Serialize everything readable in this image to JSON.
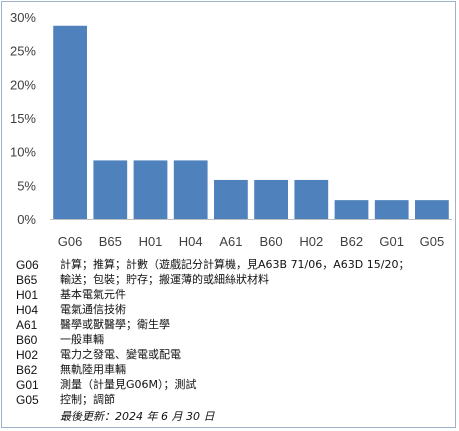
{
  "chart_data": {
    "type": "bar",
    "title": "",
    "xlabel": "",
    "ylabel": "",
    "ylim": [
      0,
      30
    ],
    "yticks": [
      "0%",
      "5%",
      "10%",
      "15%",
      "20%",
      "25%",
      "30%"
    ],
    "grid": false,
    "bar_color": "#4f81bd",
    "categories": [
      "G06",
      "B65",
      "H01",
      "H04",
      "A61",
      "B60",
      "H02",
      "B62",
      "G01",
      "G05"
    ],
    "values": [
      28.7,
      8.7,
      8.7,
      8.7,
      5.8,
      5.8,
      5.8,
      2.8,
      2.8,
      2.8
    ]
  },
  "legend": [
    {
      "code": "G06",
      "desc": "計算；推算；計數（遊戲記分計算機，見A63B 71/06，A63D 15/20；"
    },
    {
      "code": "B65",
      "desc": "輸送；包裝；貯存；搬運薄的或細絲狀材料"
    },
    {
      "code": "H01",
      "desc": "基本電氣元件"
    },
    {
      "code": "H04",
      "desc": "電氣通信技術"
    },
    {
      "code": "A61",
      "desc": "醫學或獸醫學；衛生學"
    },
    {
      "code": "B60",
      "desc": "一般車輛"
    },
    {
      "code": "H02",
      "desc": "電力之發電、變電或配電"
    },
    {
      "code": "B62",
      "desc": "無軌陸用車輛"
    },
    {
      "code": "G01",
      "desc": "測量（計量見G06M）；測試"
    },
    {
      "code": "G05",
      "desc": "控制；調節"
    }
  ],
  "update_note": "最後更新：2024 年 6 月 30 日"
}
